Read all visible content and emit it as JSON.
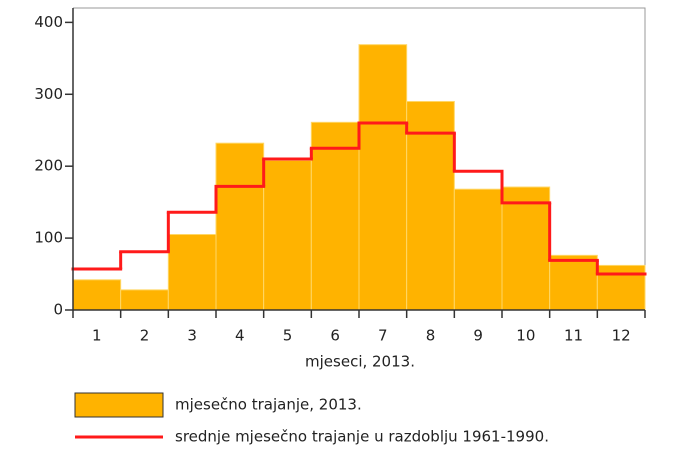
{
  "chart_data": {
    "type": "bar",
    "x_label": "mjeseci, 2013.",
    "categories": [
      "1",
      "2",
      "3",
      "4",
      "5",
      "6",
      "7",
      "8",
      "9",
      "10",
      "11",
      "12"
    ],
    "series": [
      {
        "name": "mjesečno trajanje, 2013.",
        "type": "bar",
        "color": "#ffb300",
        "values": [
          42,
          28,
          105,
          232,
          208,
          261,
          369,
          290,
          168,
          171,
          76,
          62
        ]
      },
      {
        "name": "srednje mjesečno trajanje u razdoblju 1961-1990.",
        "type": "step",
        "color": "#ff1a1a",
        "values": [
          57,
          81,
          136,
          172,
          210,
          225,
          260,
          246,
          193,
          149,
          69,
          50
        ]
      }
    ],
    "ylim": [
      0,
      420
    ],
    "yticks": [
      0,
      100,
      200,
      300,
      400
    ]
  }
}
